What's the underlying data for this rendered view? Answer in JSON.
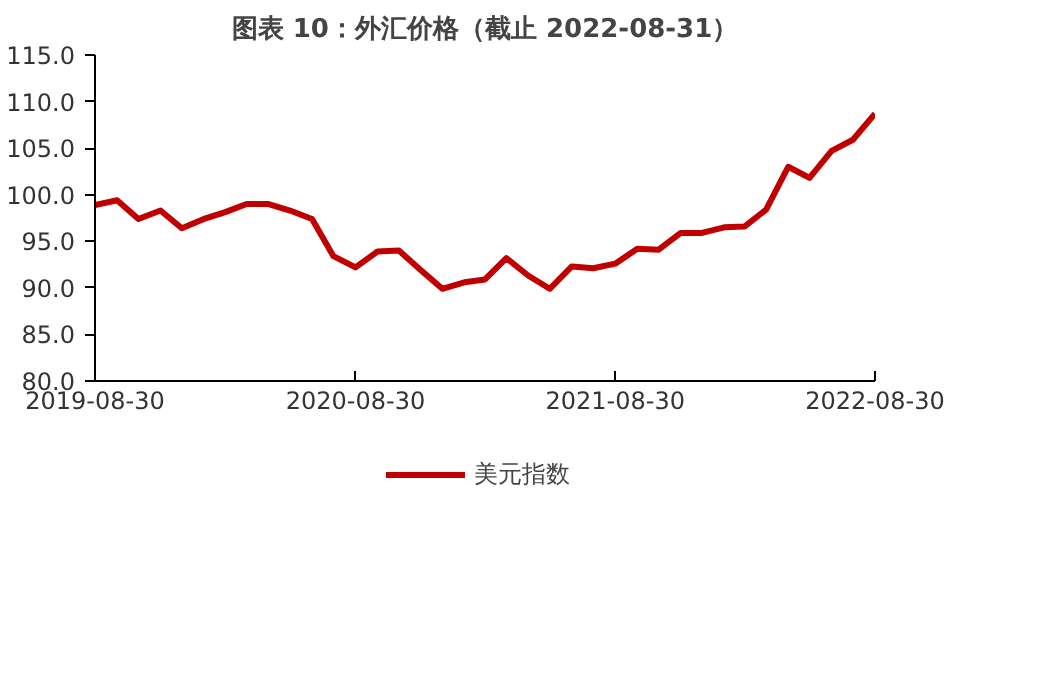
{
  "chart_data": {
    "type": "line",
    "title": "图表 10：外汇价格（截止 2022-08-31）",
    "x": [
      "2019-08-30",
      "2019-09-30",
      "2019-10-30",
      "2019-11-30",
      "2019-12-30",
      "2020-01-30",
      "2020-02-28",
      "2020-03-30",
      "2020-04-30",
      "2020-05-30",
      "2020-06-30",
      "2020-07-30",
      "2020-08-30",
      "2020-09-30",
      "2020-10-30",
      "2020-11-30",
      "2020-12-30",
      "2021-01-30",
      "2021-02-28",
      "2021-03-30",
      "2021-04-30",
      "2021-05-30",
      "2021-06-30",
      "2021-07-30",
      "2021-08-30",
      "2021-09-30",
      "2021-10-30",
      "2021-11-30",
      "2021-12-30",
      "2022-01-30",
      "2022-02-28",
      "2022-03-30",
      "2022-04-30",
      "2022-05-30",
      "2022-06-30",
      "2022-07-30",
      "2022-08-30"
    ],
    "series": [
      {
        "name": "美元指数",
        "color": "#c00000",
        "values": [
          98.9,
          99.4,
          97.4,
          98.3,
          96.4,
          97.4,
          98.1,
          99.0,
          99.0,
          98.3,
          97.4,
          93.4,
          92.2,
          93.9,
          94.0,
          91.9,
          89.9,
          90.6,
          90.9,
          93.2,
          91.3,
          89.9,
          92.3,
          92.1,
          92.6,
          94.2,
          94.1,
          95.9,
          95.9,
          96.5,
          96.6,
          98.4,
          103.0,
          101.8,
          104.7,
          105.9,
          108.7
        ]
      }
    ],
    "xlim": [
      "2019-08-30",
      "2022-08-30"
    ],
    "xticks": [
      "2019-08-30",
      "2020-08-30",
      "2021-08-30",
      "2022-08-30"
    ],
    "ylim": [
      80,
      115
    ],
    "yticks": [
      {
        "value": 80,
        "label": "80.0"
      },
      {
        "value": 85,
        "label": "85.0"
      },
      {
        "value": 90,
        "label": "90.0"
      },
      {
        "value": 95,
        "label": "95.0"
      },
      {
        "value": 100,
        "label": "100.0"
      },
      {
        "value": 105,
        "label": "105.0"
      },
      {
        "value": 110,
        "label": "110.0"
      },
      {
        "value": 115,
        "label": "115.0"
      }
    ],
    "grid": false,
    "legend": "bottom",
    "marker": "none",
    "line_style": "solid"
  }
}
